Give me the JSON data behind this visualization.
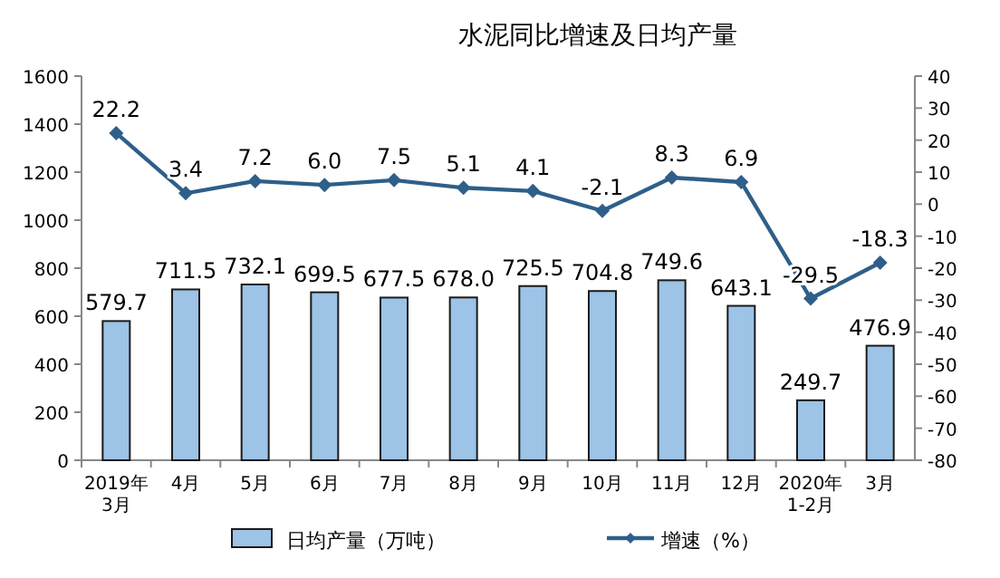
{
  "chart_data": {
    "type": "bar",
    "title": "水泥同比增速及日均产量",
    "categories": [
      "2019年\n3月",
      "4月",
      "5月",
      "6月",
      "7月",
      "8月",
      "9月",
      "10月",
      "11月",
      "12月",
      "2020年\n1-2月",
      "3月"
    ],
    "series": [
      {
        "name": "日均产量（万吨）",
        "color": "#9dc3e6",
        "values": [
          579.7,
          711.5,
          732.1,
          699.5,
          677.5,
          678.0,
          725.5,
          704.8,
          749.6,
          643.1,
          249.7,
          476.9
        ],
        "value_labels": [
          "579.7",
          "711.5",
          "732.1",
          "699.5",
          "677.5",
          "678.0",
          "725.5",
          "704.8",
          "749.6",
          "643.1",
          "249.7",
          "476.9"
        ]
      },
      {
        "name": "增速（%）",
        "type": "line",
        "axis": "y2",
        "color": "#2e5f8a",
        "marker": "diamond",
        "values": [
          22.2,
          3.4,
          7.2,
          6.0,
          7.5,
          5.1,
          4.1,
          -2.1,
          8.3,
          6.9,
          -29.5,
          -18.3
        ],
        "value_labels": [
          "22.2",
          "3.4",
          "7.2",
          "6.0",
          "7.5",
          "5.1",
          "4.1",
          "-2.1",
          "8.3",
          "6.9",
          "-29.5",
          "-18.3"
        ]
      }
    ],
    "ylim": [
      0,
      1600
    ],
    "yticks": [
      0,
      200,
      400,
      600,
      800,
      1000,
      1200,
      1400,
      1600
    ],
    "y2lim": [
      -80,
      40
    ],
    "y2ticks": [
      -80,
      -70,
      -60,
      -50,
      -40,
      -30,
      -20,
      -10,
      0,
      10,
      20,
      30,
      40
    ],
    "legend": "bottom"
  }
}
